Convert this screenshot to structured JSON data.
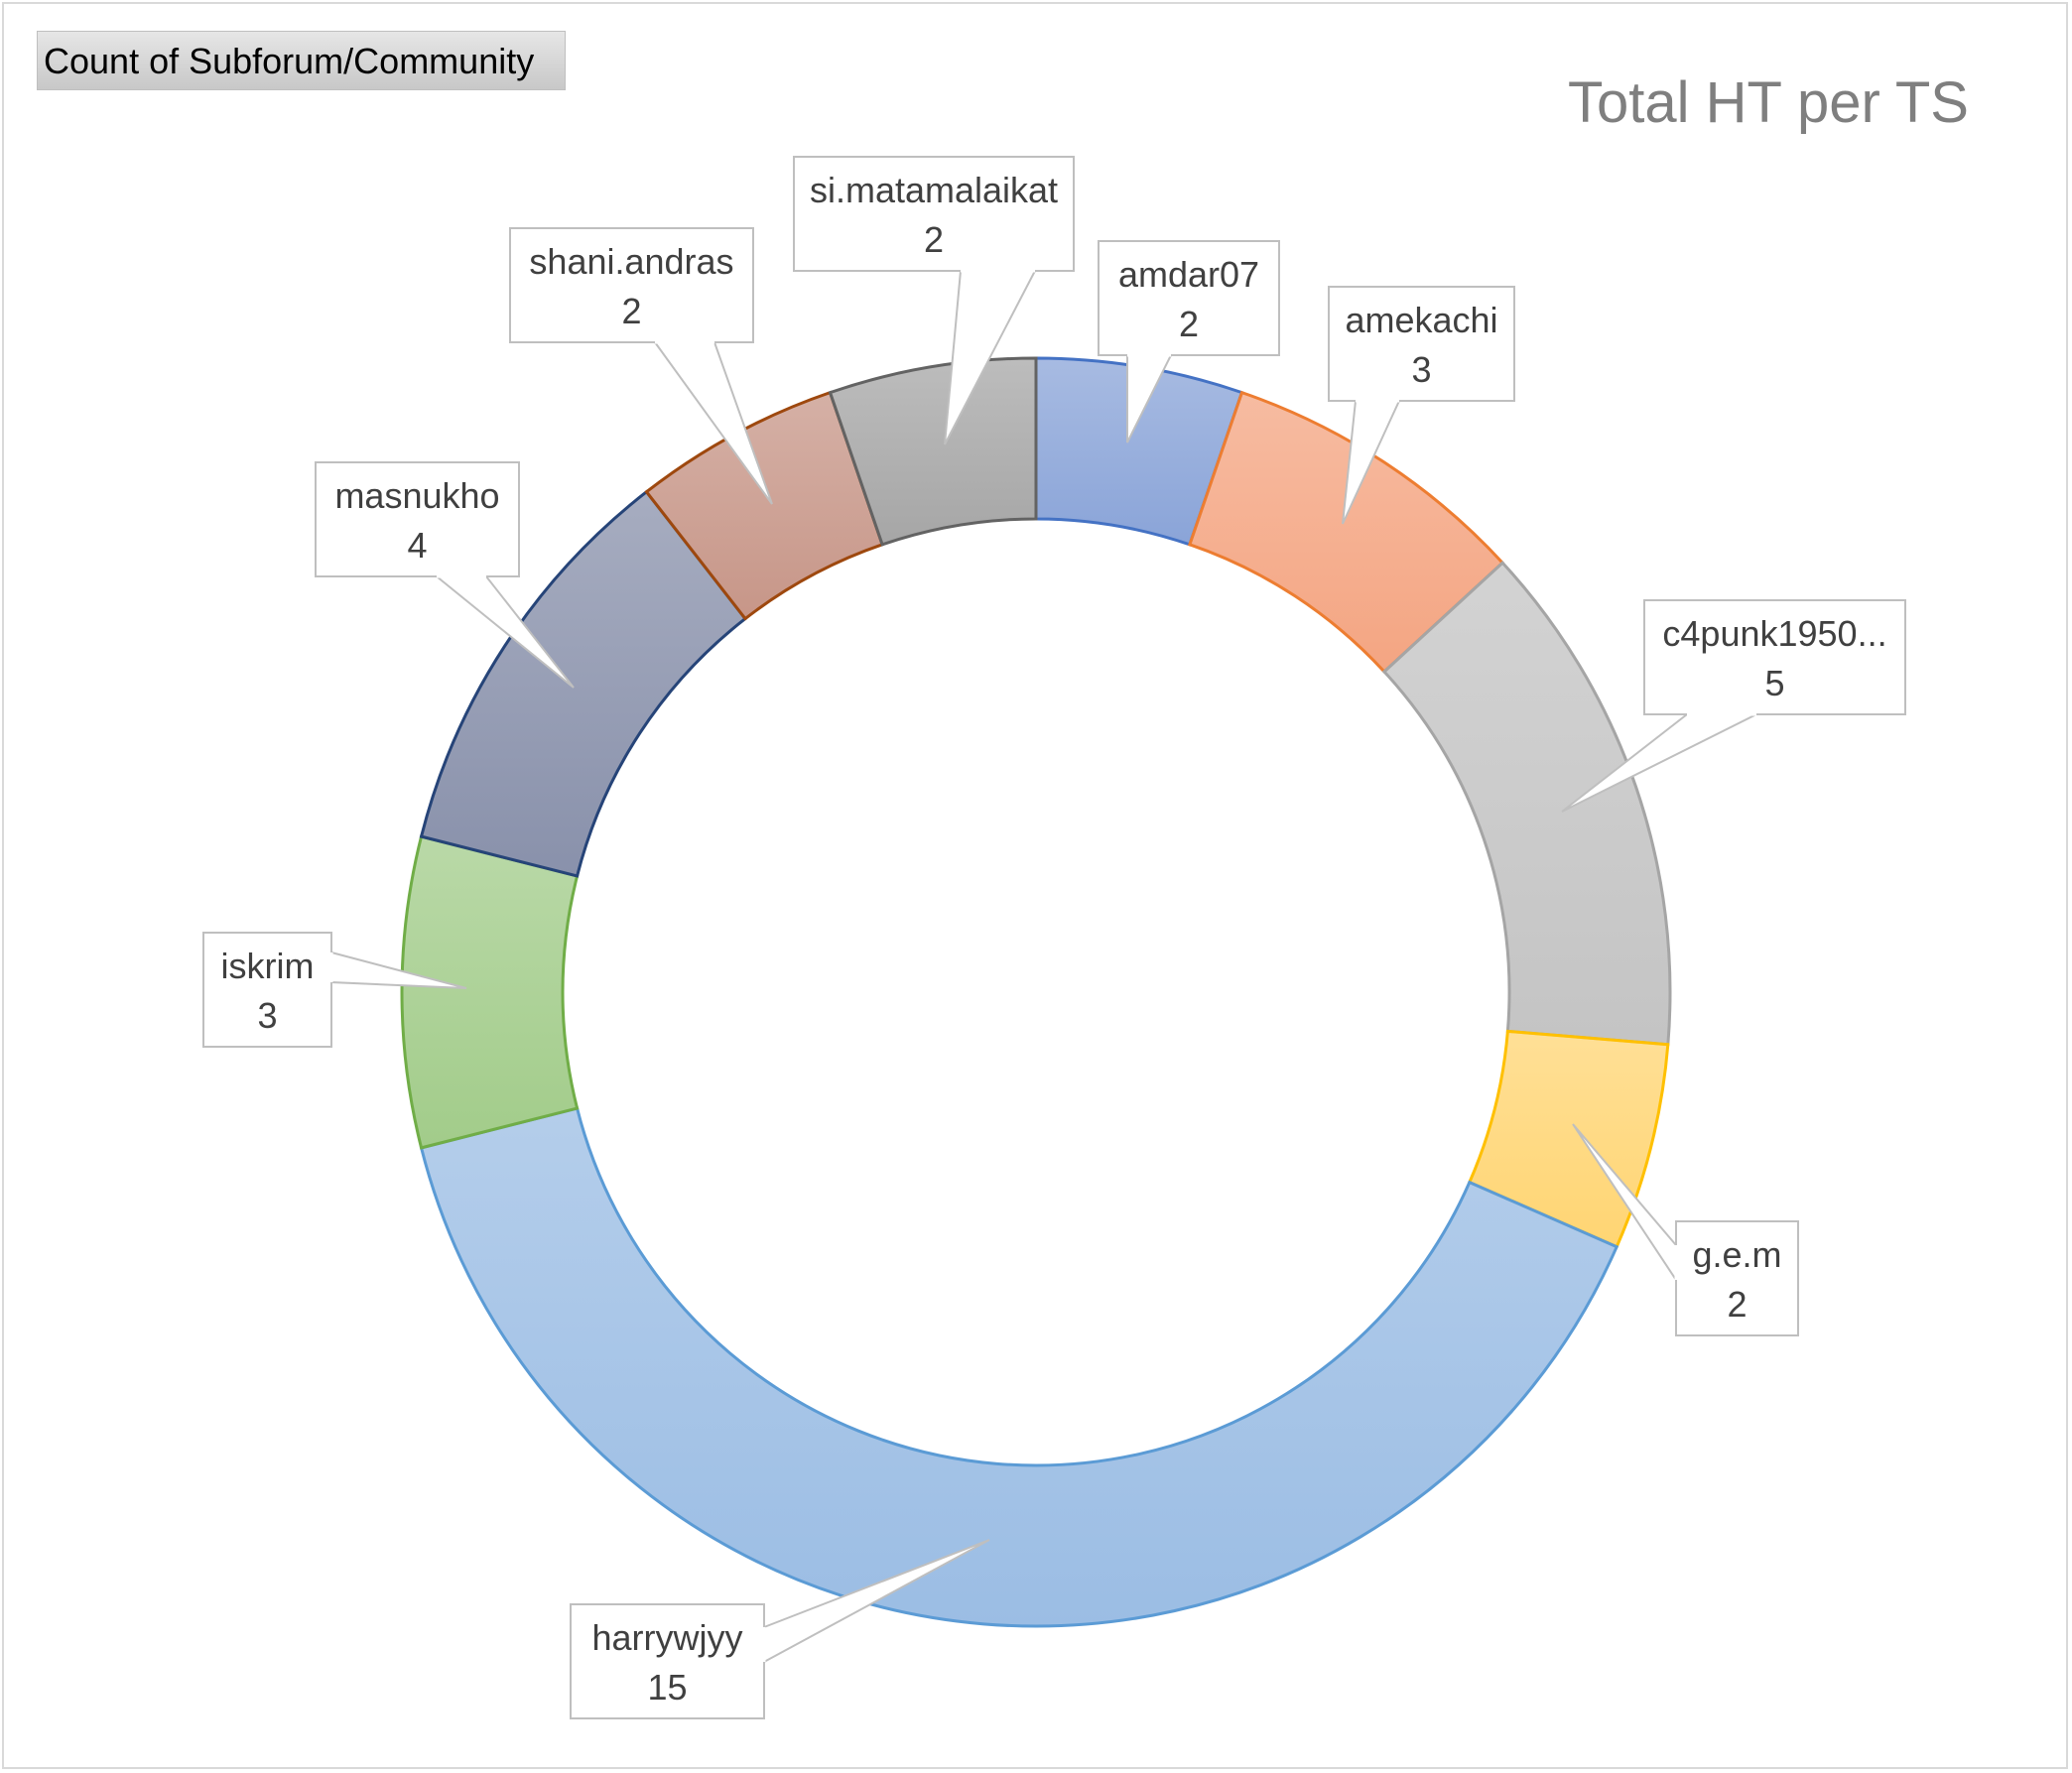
{
  "field_button": {
    "label": "Count of Subforum/Community"
  },
  "chart_data": {
    "type": "pie",
    "variant": "doughnut",
    "title": "Total HT per TS",
    "categories": [
      "amdar07",
      "amekachi",
      "c4punk1950...",
      "g.e.m",
      "harrywjyy",
      "iskrim",
      "masnukho",
      "shani.andras",
      "si.matamalaikat"
    ],
    "values": [
      2,
      3,
      5,
      2,
      15,
      3,
      4,
      2,
      2
    ],
    "colors": [
      "#8aa4d8",
      "#f4a582",
      "#c4c4c4",
      "#ffd573",
      "#9bbde4",
      "#a2cc8a",
      "#8991ab",
      "#c79688",
      "#a6a6a6"
    ],
    "stroke_colors": [
      "#4472c4",
      "#ed7d31",
      "#a5a5a5",
      "#ffc000",
      "#5b9bd5",
      "#70ad47",
      "#264478",
      "#9e480e",
      "#636363"
    ],
    "legend": "none",
    "data_labels": "callouts (category name and value)"
  }
}
